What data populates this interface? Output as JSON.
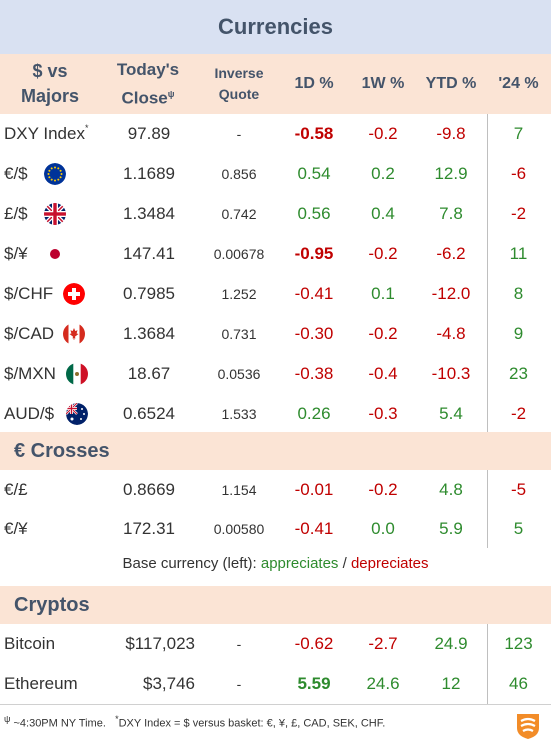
{
  "title": "Currencies",
  "headers": {
    "pair_line1": "$ vs",
    "pair_line2": "Majors",
    "close_line1": "Today's",
    "close_line2": "Close",
    "close_sup": "ψ",
    "inverse_line1": "Inverse",
    "inverse_line2": "Quote",
    "d1": "1D %",
    "w1": "1W %",
    "ytd": "YTD %",
    "y24": "'24 %"
  },
  "majors": [
    {
      "name": "DXY Index",
      "sup": "*",
      "close": "97.89",
      "inverse": "-",
      "d1": "-0.58",
      "w1": "-0.2",
      "ytd": "-9.8",
      "y24": "7",
      "flag": ""
    },
    {
      "name": "€/$",
      "close": "1.1689",
      "inverse": "0.856",
      "d1": "0.54",
      "w1": "0.2",
      "ytd": "12.9",
      "y24": "-6",
      "flag": "eu-flag"
    },
    {
      "name": "£/$",
      "close": "1.3484",
      "inverse": "0.742",
      "d1": "0.56",
      "w1": "0.4",
      "ytd": "7.8",
      "y24": "-2",
      "flag": "uk-flag"
    },
    {
      "name": "$/¥",
      "close": "147.41",
      "inverse": "0.00678",
      "d1": "-0.95",
      "w1": "-0.2",
      "ytd": "-6.2",
      "y24": "11",
      "flag": "japan-flag"
    },
    {
      "name": "$/CHF",
      "close": "0.7985",
      "inverse": "1.252",
      "d1": "-0.41",
      "w1": "0.1",
      "ytd": "-12.0",
      "y24": "8",
      "flag": "swiss-flag"
    },
    {
      "name": "$/CAD",
      "close": "1.3684",
      "inverse": "0.731",
      "d1": "-0.30",
      "w1": "-0.2",
      "ytd": "-4.8",
      "y24": "9",
      "flag": "canada-flag"
    },
    {
      "name": "$/MXN",
      "close": "18.67",
      "inverse": "0.0536",
      "d1": "-0.38",
      "w1": "-0.4",
      "ytd": "-10.3",
      "y24": "23",
      "flag": "mexico-flag"
    },
    {
      "name": "AUD/$",
      "close": "0.6524",
      "inverse": "1.533",
      "d1": "0.26",
      "w1": "-0.3",
      "ytd": "5.4",
      "y24": "-2",
      "flag": "australia-flag"
    }
  ],
  "crosses_title": "€ Crosses",
  "crosses": [
    {
      "name": "€/£",
      "close": "0.8669",
      "inverse": "1.154",
      "d1": "-0.01",
      "w1": "-0.2",
      "ytd": "4.8",
      "y24": "-5"
    },
    {
      "name": "€/¥",
      "close": "172.31",
      "inverse": "0.00580",
      "d1": "-0.41",
      "w1": "0.0",
      "ytd": "5.9",
      "y24": "5"
    }
  ],
  "legend": {
    "prefix": "Base currency (left):",
    "appreciates": "appreciates",
    "sep": "/",
    "depreciates": "depreciates"
  },
  "cryptos_title": "Cryptos",
  "cryptos": [
    {
      "name": "Bitcoin",
      "close": "$117,023",
      "inverse": "-",
      "d1": "-0.62",
      "w1": "-2.7",
      "ytd": "24.9",
      "y24": "123"
    },
    {
      "name": "Ethereum",
      "close": "$3,746",
      "inverse": "-",
      "d1": "5.59",
      "w1": "24.6",
      "ytd": "12",
      "y24": "46"
    }
  ],
  "footnote": {
    "sup1": "ψ",
    "text1": " ~4:30PM NY Time.",
    "sup2": "*",
    "text2": "DXY Index = $ versus basket: €, ¥, £, CAD, SEK, CHF."
  },
  "logo_icon": "brand-logo-icon",
  "colors": {
    "up": "#2e8b2e",
    "down": "#c00000",
    "title_bg": "#d9e1f2",
    "section_bg": "#fbe4d5"
  }
}
